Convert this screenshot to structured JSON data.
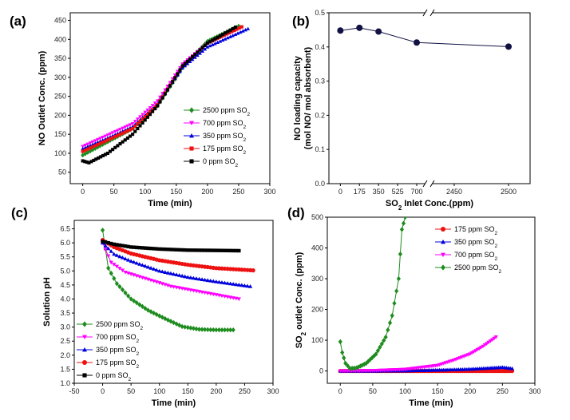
{
  "colors": {
    "2500": "#1e8c1e",
    "700": "#ff00ff",
    "350": "#0000dd",
    "175": "#ee1111",
    "0": "#000000",
    "b": "#111144"
  },
  "chart_data": [
    {
      "id": "a",
      "panel_label": "(a)",
      "type": "line",
      "xlabel": "Time (min)",
      "ylabel": "NO Outlet Conc. (ppm)",
      "xlim": [
        -20,
        300
      ],
      "ylim": [
        20,
        470
      ],
      "xticks": [
        0,
        50,
        100,
        150,
        200,
        250,
        300
      ],
      "yticks": [
        50,
        100,
        150,
        200,
        250,
        300,
        350,
        400,
        450
      ],
      "legend_position": "lower-right",
      "series": [
        {
          "key": "2500",
          "name": "2500 ppm SO2",
          "marker": "diamond",
          "x": [
            0,
            40,
            80,
            120,
            160,
            200,
            250
          ],
          "y": [
            95,
            130,
            165,
            225,
            325,
            395,
            435
          ]
        },
        {
          "key": "700",
          "name": "700 ppm SO2",
          "marker": "tri-down",
          "x": [
            0,
            40,
            80,
            120,
            160,
            200,
            255
          ],
          "y": [
            118,
            148,
            178,
            238,
            335,
            390,
            432
          ]
        },
        {
          "key": "350",
          "name": "350 ppm SO2",
          "marker": "tri-up",
          "x": [
            0,
            40,
            80,
            120,
            160,
            200,
            265
          ],
          "y": [
            112,
            140,
            170,
            230,
            325,
            380,
            428
          ]
        },
        {
          "key": "175",
          "name": "175 ppm SO2",
          "marker": "square",
          "x": [
            0,
            40,
            80,
            120,
            160,
            200,
            255
          ],
          "y": [
            105,
            135,
            165,
            228,
            330,
            390,
            433
          ]
        },
        {
          "key": "0",
          "name": "0 ppm SO2",
          "marker": "square",
          "x": [
            0,
            10,
            40,
            80,
            120,
            160,
            200,
            245
          ],
          "y": [
            80,
            75,
            100,
            150,
            225,
            330,
            390,
            432
          ]
        }
      ]
    },
    {
      "id": "b",
      "panel_label": "(b)",
      "type": "line",
      "xlabel": "SO2 Inlet Conc.(ppm)",
      "ylabel_line1": "NO loading capacity",
      "ylabel_line2": "(mol NO/ mol absorbent)",
      "ylim": [
        0,
        0.5
      ],
      "yticks": [
        0.0,
        0.1,
        0.2,
        0.3,
        0.4,
        0.5
      ],
      "xticks": [
        "0",
        "175",
        "350",
        "525",
        "700",
        "2450",
        "2500"
      ],
      "axis_break": "between 700 and 2450",
      "x": [
        0,
        175,
        350,
        700,
        2500
      ],
      "y": [
        0.448,
        0.456,
        0.445,
        0.413,
        0.401
      ]
    },
    {
      "id": "c",
      "panel_label": "(c)",
      "type": "line",
      "xlabel": "Time (min)",
      "ylabel": "Solution pH",
      "xlim": [
        -50,
        300
      ],
      "ylim": [
        1.0,
        6.8
      ],
      "xticks": [
        -50,
        0,
        50,
        100,
        150,
        200,
        250,
        300
      ],
      "yticks": [
        1.0,
        1.5,
        2.0,
        2.5,
        3.0,
        3.5,
        4.0,
        4.5,
        5.0,
        5.5,
        6.0,
        6.5
      ],
      "legend_position": "lower-left",
      "series": [
        {
          "key": "2500",
          "name": "2500 ppm SO2",
          "marker": "diamond",
          "x": [
            0,
            10,
            25,
            50,
            80,
            110,
            140,
            170,
            200,
            230
          ],
          "y": [
            6.45,
            5.1,
            4.55,
            4.0,
            3.6,
            3.3,
            3.02,
            2.92,
            2.9,
            2.9
          ]
        },
        {
          "key": "700",
          "name": "700 ppm SO2",
          "marker": "tri-down",
          "x": [
            0,
            15,
            40,
            80,
            120,
            160,
            200,
            240
          ],
          "y": [
            6.0,
            5.3,
            4.95,
            4.7,
            4.45,
            4.3,
            4.15,
            4.0
          ]
        },
        {
          "key": "350",
          "name": "350 ppm SO2",
          "marker": "tri-up",
          "x": [
            0,
            20,
            50,
            100,
            150,
            200,
            260
          ],
          "y": [
            6.0,
            5.6,
            5.35,
            5.0,
            4.78,
            4.62,
            4.45
          ]
        },
        {
          "key": "175",
          "name": "175 ppm SO2",
          "marker": "circle",
          "x": [
            0,
            20,
            50,
            100,
            150,
            200,
            265
          ],
          "y": [
            6.1,
            5.85,
            5.62,
            5.38,
            5.22,
            5.1,
            5.02
          ]
        },
        {
          "key": "0",
          "name": "0 ppm SO2",
          "marker": "square",
          "x": [
            0,
            20,
            50,
            100,
            150,
            200,
            240
          ],
          "y": [
            6.05,
            5.95,
            5.85,
            5.78,
            5.74,
            5.73,
            5.72
          ]
        }
      ]
    },
    {
      "id": "d",
      "panel_label": "(d)",
      "type": "line",
      "xlabel": "Time (min)",
      "ylabel": "SO2 outlet Conc. (ppm)",
      "xlim": [
        -20,
        300
      ],
      "ylim": [
        -40,
        500
      ],
      "xticks": [
        0,
        50,
        100,
        150,
        200,
        250,
        300
      ],
      "yticks": [
        0,
        100,
        200,
        300,
        400,
        500
      ],
      "legend_position": "top-right",
      "series": [
        {
          "key": "175",
          "name": "175 ppm SO2",
          "marker": "circle",
          "x": [
            0,
            50,
            100,
            150,
            200,
            265
          ],
          "y": [
            0,
            0,
            0,
            0,
            0,
            0
          ]
        },
        {
          "key": "350",
          "name": "350 ppm SO2",
          "marker": "tri-up",
          "x": [
            0,
            50,
            100,
            150,
            200,
            250,
            265
          ],
          "y": [
            0,
            0,
            1,
            3,
            6,
            12,
            8
          ]
        },
        {
          "key": "700",
          "name": "700 ppm SO2",
          "marker": "tri-down",
          "x": [
            0,
            50,
            100,
            150,
            175,
            200,
            220,
            240
          ],
          "y": [
            0,
            1,
            5,
            18,
            35,
            55,
            80,
            110
          ]
        },
        {
          "key": "2500",
          "name": "2500 ppm SO2",
          "marker": "diamond",
          "x": [
            0,
            3,
            8,
            15,
            25,
            40,
            55,
            70,
            80,
            90,
            95,
            100
          ],
          "y": [
            95,
            60,
            25,
            8,
            10,
            25,
            55,
            110,
            180,
            300,
            460,
            500
          ]
        }
      ]
    }
  ]
}
